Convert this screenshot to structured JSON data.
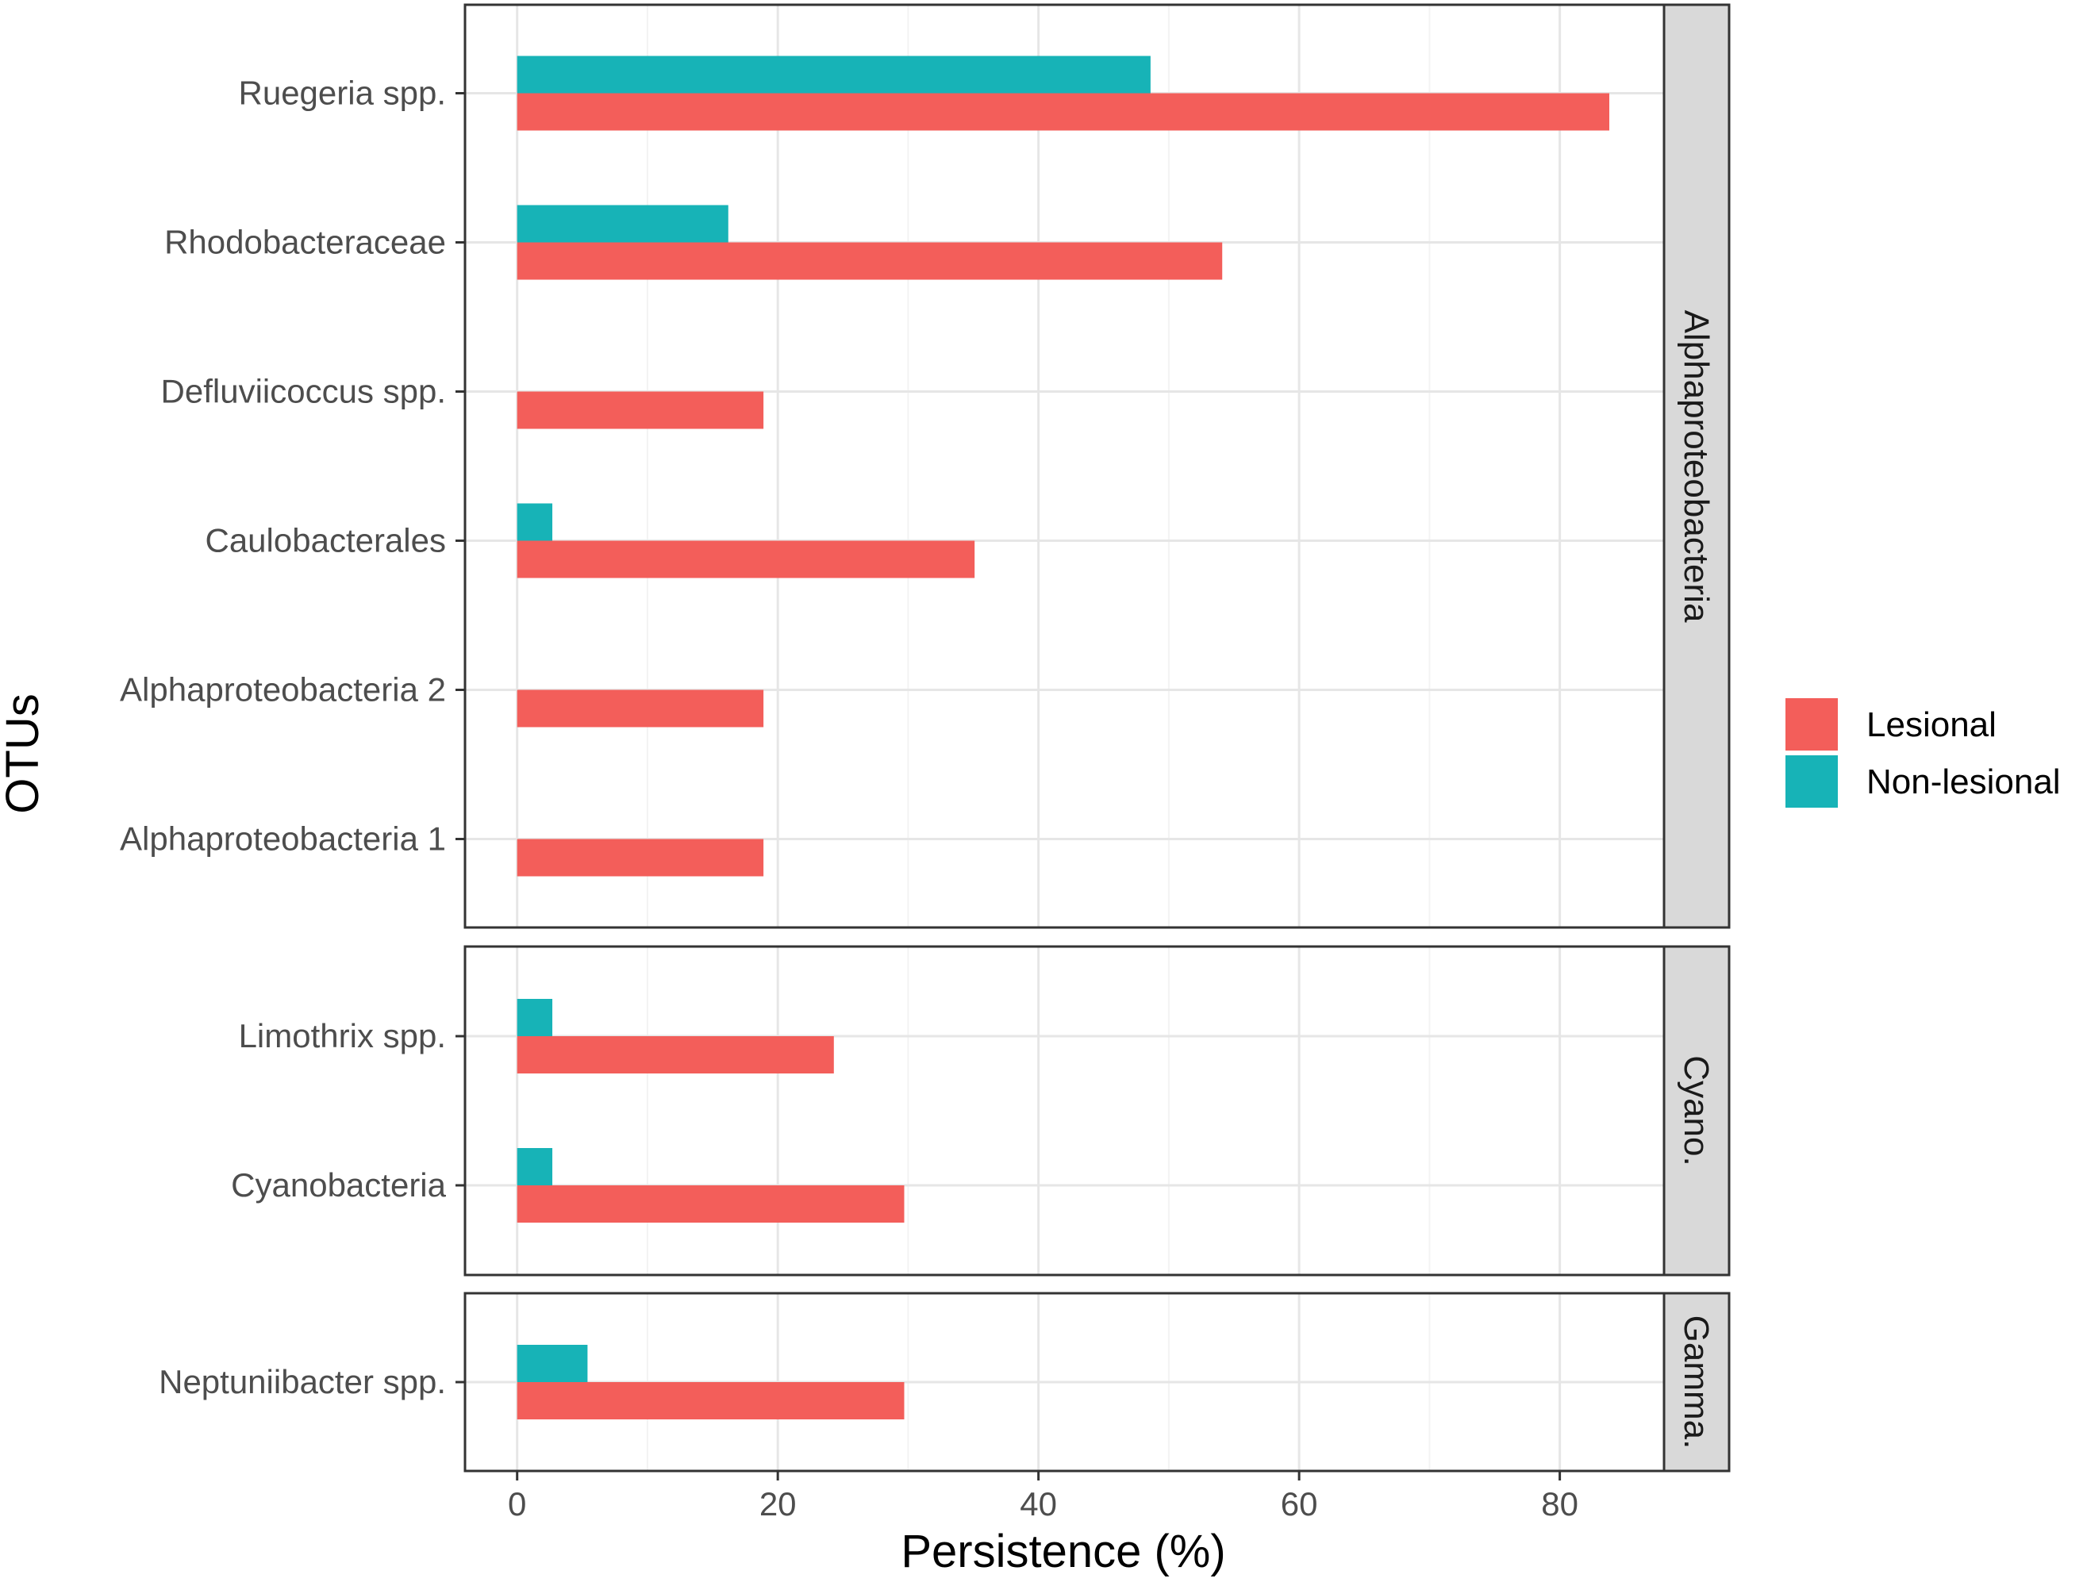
{
  "chart_data": {
    "type": "bar",
    "orientation": "horizontal",
    "xlabel": "Persistence (%)",
    "ylabel": "OTUs",
    "xlim": [
      -4,
      88
    ],
    "xticks": [
      0,
      20,
      40,
      60,
      80
    ],
    "tick_labels": [
      "0",
      "20",
      "40",
      "60",
      "80"
    ],
    "minor_grid": [
      10,
      30,
      50,
      70
    ],
    "grid": true,
    "legend_position": "right",
    "colors": {
      "Lesional": "#F35E5A",
      "Non-lesional": "#17B3B7"
    },
    "series_names": [
      "Lesional",
      "Non-lesional"
    ],
    "panels": [
      {
        "label": "Alphaproteobacteria",
        "categories": [
          "Ruegeria spp.",
          "Rhodobacteraceae",
          "Defluviicoccus spp.",
          "Caulobacterales",
          "Alphaproteobacteria 2",
          "Alphaproteobacteria 1"
        ],
        "series": [
          {
            "name": "Lesional",
            "values": [
              83.8,
              54.1,
              18.9,
              35.1,
              18.9,
              18.9
            ]
          },
          {
            "name": "Non-lesional",
            "values": [
              48.6,
              16.2,
              0,
              2.7,
              0,
              0
            ]
          }
        ]
      },
      {
        "label": "Cyano.",
        "categories": [
          "Limothrix spp.",
          "Cyanobacteria"
        ],
        "series": [
          {
            "name": "Lesional",
            "values": [
              24.3,
              29.7
            ]
          },
          {
            "name": "Non-lesional",
            "values": [
              2.7,
              2.7
            ]
          }
        ]
      },
      {
        "label": "Gamma.",
        "categories": [
          "Neptuniibacter spp."
        ],
        "series": [
          {
            "name": "Lesional",
            "values": [
              29.7
            ]
          },
          {
            "name": "Non-lesional",
            "values": [
              5.4
            ]
          }
        ]
      }
    ]
  }
}
